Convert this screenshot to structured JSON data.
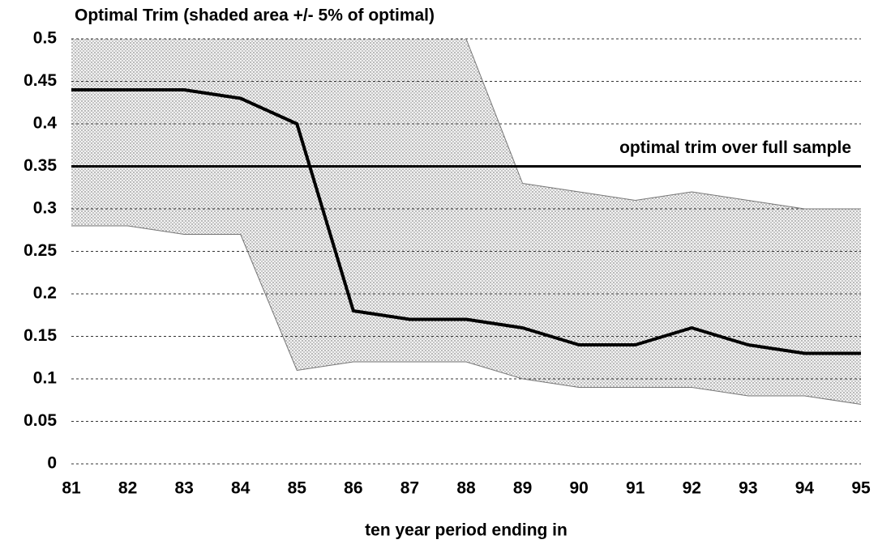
{
  "chart_data": {
    "type": "line",
    "title": "Optimal Trim (shaded area +/-  5% of optimal)",
    "x_label": "ten year period ending in",
    "x": [
      81,
      82,
      83,
      84,
      85,
      86,
      87,
      88,
      89,
      90,
      91,
      92,
      93,
      94,
      95
    ],
    "series": [
      {
        "role": "line",
        "color": "#000000",
        "values": [
          0.44,
          0.44,
          0.44,
          0.43,
          0.4,
          0.18,
          0.17,
          0.17,
          0.16,
          0.14,
          0.14,
          0.16,
          0.14,
          0.13,
          0.13
        ]
      },
      {
        "role": "band-upper",
        "color": "#777777",
        "values": [
          null,
          null,
          null,
          null,
          null,
          null,
          null,
          0.5,
          0.33,
          0.32,
          0.31,
          0.32,
          0.31,
          0.3,
          0.3
        ]
      },
      {
        "role": "band-lower",
        "color": "#777777",
        "values": [
          0.28,
          0.28,
          0.27,
          0.27,
          0.11,
          0.12,
          0.12,
          0.12,
          0.1,
          0.09,
          0.09,
          0.09,
          0.08,
          0.08,
          0.07
        ]
      }
    ],
    "reference_line": {
      "value": 0.35,
      "label": "optimal trim over full sample"
    },
    "xlim": [
      81,
      95
    ],
    "xticks": [
      81,
      82,
      83,
      84,
      85,
      86,
      87,
      88,
      89,
      90,
      91,
      92,
      93,
      94,
      95
    ],
    "ylim": [
      0,
      0.5
    ],
    "yticks": [
      0,
      0.05,
      0.1,
      0.15,
      0.2,
      0.25,
      0.3,
      0.35,
      0.4,
      0.45,
      0.5
    ],
    "grid": true
  }
}
